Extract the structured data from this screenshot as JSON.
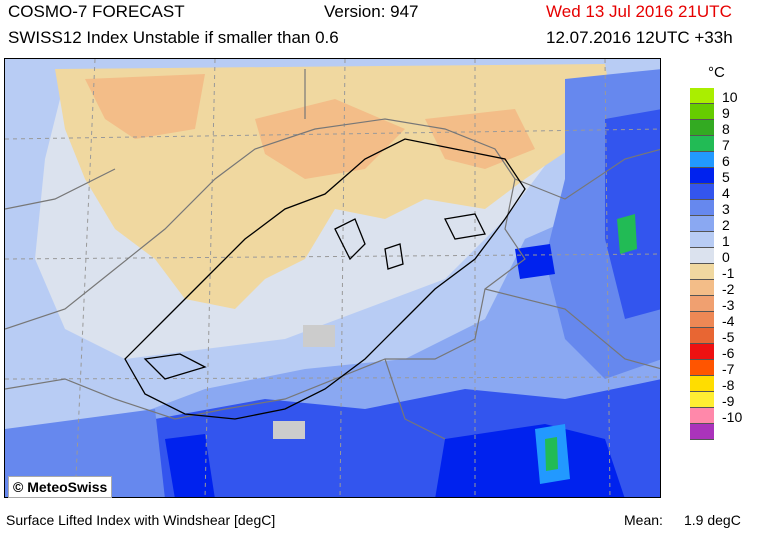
{
  "header": {
    "model": "COSMO-7 FORECAST",
    "version": "Version: 947",
    "valid_time": "Wed 13 Jul 2016 21UTC",
    "index_title": "SWISS12 Index Unstable if smaller than 0.6",
    "run_time": "12.07.2016 12UTC +33h"
  },
  "legend": {
    "unit": "°C",
    "labels": [
      "10",
      "9",
      "8",
      "7",
      "6",
      "5",
      "4",
      "3",
      "2",
      "1",
      "0",
      "-1",
      "-2",
      "-3",
      "-4",
      "-5",
      "-6",
      "-7",
      "-8",
      "-9",
      "-10"
    ],
    "colors": [
      "#aaee00",
      "#66cc00",
      "#33aa22",
      "#22bb55",
      "#2299ff",
      "#0022ee",
      "#3355ee",
      "#6688ee",
      "#8aa8f2",
      "#b8ccf4",
      "#dbe2ee",
      "#f0d8a0",
      "#f3bd88",
      "#f0a070",
      "#ee8855",
      "#e86633",
      "#ee1111",
      "#ff5500",
      "#ffdd00",
      "#ffee33",
      "#ff88aa",
      "#aa33bb"
    ]
  },
  "map": {
    "copyright": "© MeteoSwiss",
    "colors": {
      "base_blue": "#8aa8f2",
      "light_blue": "#b8ccf4",
      "pale": "#dbe2ee",
      "tan": "#f0d8a0",
      "orange": "#f3bd88",
      "mid_blue": "#6688ee",
      "deep_blue": "#3355ee",
      "dark_blue": "#0022ee",
      "cyan": "#2299ff",
      "green": "#22bb55"
    }
  },
  "footer": {
    "description": "Surface Lifted Index with Windshear [degC]",
    "mean_label": "Mean:",
    "mean_value": "1.9 degC"
  }
}
